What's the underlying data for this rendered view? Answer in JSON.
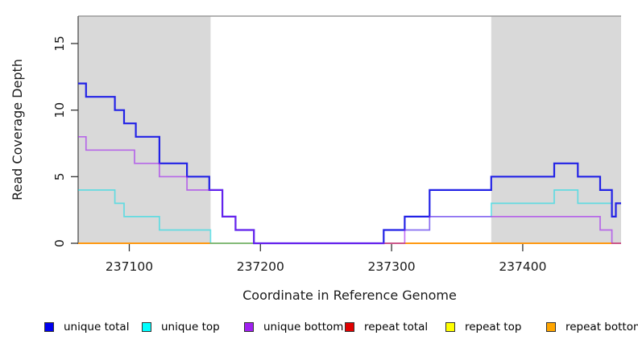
{
  "chart_data": {
    "type": "line",
    "subtype": "step-coverage",
    "title": "",
    "xlabel": "Coordinate in Reference Genome",
    "ylabel": "Read Coverage Depth",
    "xlim": [
      237061,
      237475
    ],
    "ylim": [
      0,
      17
    ],
    "x_ticks": [
      237100,
      237200,
      237300,
      237400
    ],
    "y_ticks": [
      0,
      5,
      10,
      15
    ],
    "grid": "off",
    "legend_position": "bottom",
    "shade_color": "#d9d9d9",
    "shaded_regions": [
      [
        237061,
        237162
      ],
      [
        237376,
        237475
      ]
    ],
    "series": [
      {
        "name": "repeat-total",
        "label": "repeat total",
        "color": "#dd2222",
        "opacity": 1,
        "width": 1.7,
        "steps": [
          [
            237061,
            0
          ]
        ]
      },
      {
        "name": "repeat-top",
        "label": "repeat top",
        "color": "#f0e600",
        "opacity": 1,
        "width": 1.7,
        "steps": [
          [
            237061,
            0
          ]
        ]
      },
      {
        "name": "repeat-bottom",
        "label": "repeat bottom",
        "color": "#ff9912",
        "opacity": 1,
        "width": 2.0,
        "steps": [
          [
            237061,
            0
          ]
        ]
      },
      {
        "name": "unique-top",
        "label": "unique top",
        "color": "#00dde8",
        "opacity": 0.55,
        "width": 1.7,
        "steps": [
          [
            237061,
            4
          ],
          [
            237089,
            3
          ],
          [
            237096,
            2
          ],
          [
            237123,
            1
          ],
          [
            237162,
            0
          ],
          [
            237294,
            1
          ],
          [
            237329,
            2
          ],
          [
            237376,
            3
          ],
          [
            237424,
            4
          ],
          [
            237442,
            3
          ],
          [
            237468,
            2
          ],
          [
            237471,
            3
          ]
        ]
      },
      {
        "name": "unique-total",
        "label": "unique total",
        "color": "#2222e6",
        "opacity": 1,
        "width": 2.2,
        "steps": [
          [
            237061,
            12
          ],
          [
            237067,
            11
          ],
          [
            237089,
            10
          ],
          [
            237096,
            9
          ],
          [
            237105,
            8
          ],
          [
            237123,
            6
          ],
          [
            237144,
            5
          ],
          [
            237161,
            4
          ],
          [
            237171,
            2
          ],
          [
            237181,
            1
          ],
          [
            237195,
            0
          ],
          [
            237294,
            1
          ],
          [
            237310,
            2
          ],
          [
            237329,
            4
          ],
          [
            237376,
            5
          ],
          [
            237424,
            6
          ],
          [
            237442,
            5
          ],
          [
            237459,
            4
          ],
          [
            237468,
            2
          ],
          [
            237471,
            3
          ]
        ]
      },
      {
        "name": "unique-bottom",
        "label": "unique bottom",
        "color": "#a020f0",
        "opacity": 0.62,
        "width": 1.7,
        "steps": [
          [
            237061,
            8
          ],
          [
            237067,
            7
          ],
          [
            237104,
            6
          ],
          [
            237123,
            5
          ],
          [
            237144,
            4
          ],
          [
            237171,
            2
          ],
          [
            237181,
            1
          ],
          [
            237195,
            0
          ],
          [
            237310,
            1
          ],
          [
            237329,
            2
          ],
          [
            237459,
            1
          ],
          [
            237468,
            0
          ]
        ]
      }
    ],
    "legend": [
      {
        "label": "unique total",
        "color": "#0000ee"
      },
      {
        "label": "unique top",
        "color": "#00ffff"
      },
      {
        "label": "unique bottom",
        "color": "#a020f0"
      },
      {
        "label": "repeat total",
        "color": "#e00000"
      },
      {
        "label": "repeat top",
        "color": "#ffff00"
      },
      {
        "label": "repeat bottom",
        "color": "#ffa500"
      }
    ]
  }
}
